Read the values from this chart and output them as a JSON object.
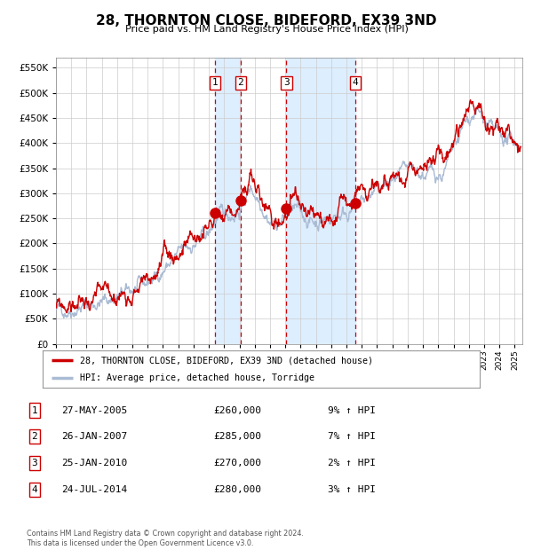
{
  "title": "28, THORNTON CLOSE, BIDEFORD, EX39 3ND",
  "subtitle": "Price paid vs. HM Land Registry's House Price Index (HPI)",
  "legend_property": "28, THORNTON CLOSE, BIDEFORD, EX39 3ND (detached house)",
  "legend_hpi": "HPI: Average price, detached house, Torridge",
  "footer": "Contains HM Land Registry data © Crown copyright and database right 2024.\nThis data is licensed under the Open Government Licence v3.0.",
  "sales": [
    {
      "num": 1,
      "date": "27-MAY-2005",
      "price": 260000,
      "pct": "9%",
      "dir": "↑",
      "x_year": 2005.41
    },
    {
      "num": 2,
      "date": "26-JAN-2007",
      "price": 285000,
      "pct": "7%",
      "dir": "↑",
      "x_year": 2007.07
    },
    {
      "num": 3,
      "date": "25-JAN-2010",
      "price": 270000,
      "pct": "2%",
      "dir": "↑",
      "x_year": 2010.07
    },
    {
      "num": 4,
      "date": "24-JUL-2014",
      "price": 280000,
      "pct": "3%",
      "dir": "↑",
      "x_year": 2014.56
    }
  ],
  "ylim": [
    0,
    570000
  ],
  "yticks": [
    0,
    50000,
    100000,
    150000,
    200000,
    250000,
    300000,
    350000,
    400000,
    450000,
    500000,
    550000
  ],
  "xlim_start": 1995.0,
  "xlim_end": 2025.5,
  "property_color": "#cc0000",
  "hpi_color": "#aabbd4",
  "sale_marker_color": "#cc0000",
  "vline_color": "#cc0000",
  "shade_color": "#ddeeff",
  "grid_color": "#cccccc",
  "background_color": "#ffffff"
}
